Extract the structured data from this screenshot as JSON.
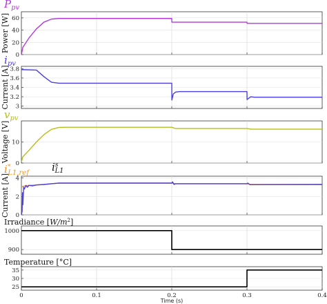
{
  "chart_data": [
    {
      "type": "line",
      "title_main": "P",
      "title_sub": "pv",
      "ylabel": "Power [W]",
      "ylim": [
        0,
        70
      ],
      "yticks": [
        "0",
        "20",
        "40",
        "60"
      ],
      "xlim": [
        0,
        0.4
      ],
      "color": "#b23ad8",
      "series": [
        {
          "x": [
            0,
            0.002,
            0.01,
            0.02,
            0.03,
            0.04,
            0.05,
            0.06,
            0.2,
            0.2001,
            0.3,
            0.3001,
            0.4
          ],
          "values": [
            0,
            12,
            27,
            42,
            53,
            58,
            59,
            59,
            59,
            53,
            53,
            51,
            51
          ]
        }
      ]
    },
    {
      "type": "line",
      "title_main": "i",
      "title_sub": "pv",
      "ylabel": "Current [A]",
      "ylim": [
        2.95,
        3.85
      ],
      "yticks": [
        "3",
        "3.2",
        "3.4",
        "3.6",
        "3.8"
      ],
      "xlim": [
        0,
        0.4
      ],
      "color": "#4b3fe0",
      "series": [
        {
          "x": [
            0,
            0.02,
            0.03,
            0.04,
            0.05,
            0.06,
            0.2,
            0.2001,
            0.202,
            0.205,
            0.21,
            0.22,
            0.3,
            0.3001,
            0.305,
            0.31,
            0.32,
            0.4
          ],
          "values": [
            3.78,
            3.77,
            3.63,
            3.51,
            3.49,
            3.49,
            3.49,
            3.13,
            3.26,
            3.3,
            3.31,
            3.31,
            3.31,
            3.14,
            3.2,
            3.19,
            3.19,
            3.19
          ]
        }
      ]
    },
    {
      "type": "line",
      "title_main": "v",
      "title_sub": "pv",
      "ylabel": "Voltage [V]",
      "ylim": [
        0,
        20
      ],
      "yticks": [
        "0",
        "10"
      ],
      "xlim": [
        0,
        0.4
      ],
      "color": "#b5bf19",
      "series": [
        {
          "x": [
            0,
            0.002,
            0.01,
            0.02,
            0.03,
            0.04,
            0.05,
            0.06,
            0.2,
            0.205,
            0.3,
            0.305,
            0.4
          ],
          "values": [
            0.5,
            3,
            6,
            10,
            13.5,
            16,
            16.9,
            17,
            17,
            16.4,
            16.4,
            16.1,
            16.1
          ]
        }
      ]
    },
    {
      "type": "line",
      "title_main": "i",
      "title_sup": "*",
      "title_sub": "L1,ref",
      "title2_main": "i",
      "title2_sup": "s",
      "title2_sub": "L1",
      "ylabel": "Current [A]",
      "ylim": [
        0,
        4.2
      ],
      "yticks": [
        "0",
        "2",
        "4"
      ],
      "xlim": [
        0,
        0.4
      ],
      "series": [
        {
          "name": "i*_L1,ref",
          "color": "#f0941e",
          "x": [
            0,
            0.002,
            0.005,
            0.01,
            0.02,
            0.03,
            0.04,
            0.05,
            0.06,
            0.2,
            0.205,
            0.3,
            0.305,
            0.4
          ],
          "values": [
            3,
            3.1,
            3.15,
            3.2,
            3.25,
            3.3,
            3.38,
            3.45,
            3.45,
            3.45,
            3.38,
            3.38,
            3.3,
            3.3
          ]
        },
        {
          "name": "i^s_L1",
          "color": "#4b3fe0",
          "x": [
            0,
            0.001,
            0.0015,
            0.002,
            0.003,
            0.004,
            0.006,
            0.008,
            0.01,
            0.015,
            0.02,
            0.03,
            0.04,
            0.05,
            0.06,
            0.2,
            0.201,
            0.203,
            0.205,
            0.3,
            0.301,
            0.304,
            0.4
          ],
          "values": [
            0,
            0.4,
            2.4,
            1.1,
            3.0,
            2.8,
            3.2,
            3.0,
            3.2,
            3.15,
            3.25,
            3.3,
            3.38,
            3.45,
            3.45,
            3.45,
            3.58,
            3.3,
            3.38,
            3.38,
            3.45,
            3.28,
            3.3
          ]
        }
      ]
    },
    {
      "type": "line",
      "title_main": "Irradiance [",
      "title_unit": "W/m",
      "title_unit_sup": "2",
      "title_close": "]",
      "ylim": [
        875,
        1025
      ],
      "yticks": [
        "900",
        "1000"
      ],
      "xlim": [
        0,
        0.4
      ],
      "color": "#000000",
      "series": [
        {
          "x": [
            0,
            0.2,
            0.2,
            0.4
          ],
          "values": [
            1000,
            1000,
            900,
            900
          ]
        }
      ]
    },
    {
      "type": "line",
      "title": "Temperature [°C]",
      "ylim": [
        23,
        37
      ],
      "yticks": [
        "25",
        "30",
        "35"
      ],
      "xlim": [
        0,
        0.4
      ],
      "xticks": [
        "0",
        "0.1",
        "0.2",
        "0.3",
        "0.4"
      ],
      "xlabel": "Time (s)",
      "color": "#000000",
      "series": [
        {
          "x": [
            0,
            0.3,
            0.3,
            0.4
          ],
          "values": [
            25,
            25,
            35,
            35
          ]
        }
      ]
    }
  ]
}
